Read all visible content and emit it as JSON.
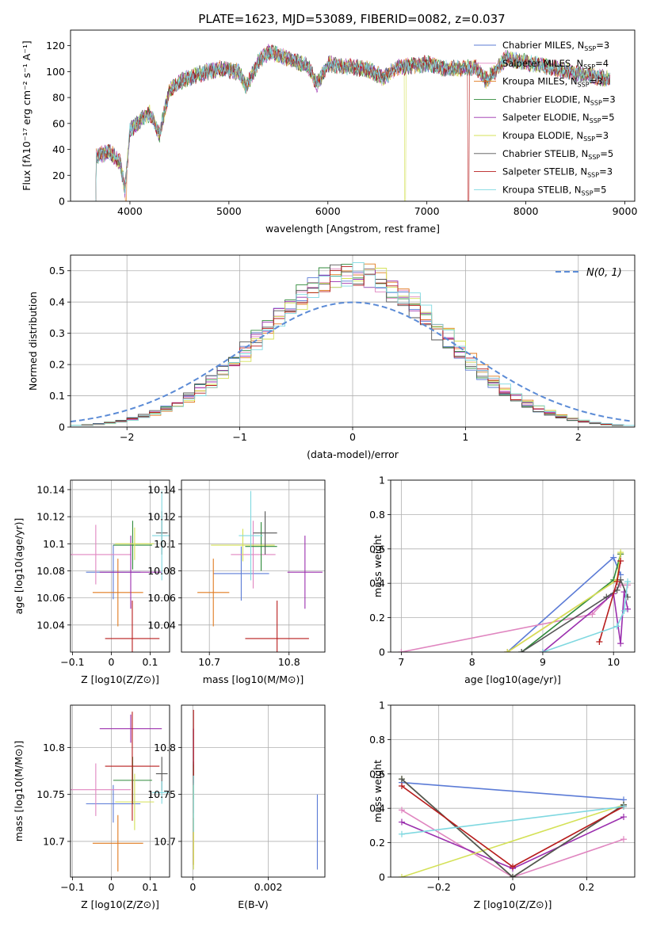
{
  "figure": {
    "title": "PLATE=1623, MJD=53089, FIBERID=0082, z=0.037",
    "series_colors": [
      "#5b7bd6",
      "#e086c0",
      "#e07a1f",
      "#2f8a3a",
      "#9b2fae",
      "#d4e157",
      "#555555",
      "#b71c1c",
      "#7fd8e0"
    ],
    "series_names": [
      [
        "Chabrier MILES, N",
        "SSP",
        "=3"
      ],
      [
        "Salpeter MILES, N",
        "SSP",
        "=4"
      ],
      [
        "Kroupa MILES, N",
        "SSP",
        "=3"
      ],
      [
        "Chabrier ELODIE, N",
        "SSP",
        "=3"
      ],
      [
        "Salpeter ELODIE, N",
        "SSP",
        "=5"
      ],
      [
        "Kroupa ELODIE, N",
        "SSP",
        "=3"
      ],
      [
        "Chabrier STELIB, N",
        "SSP",
        "=5"
      ],
      [
        "Salpeter STELIB, N",
        "SSP",
        "=3"
      ],
      [
        "Kroupa STELIB, N",
        "SSP",
        "=5"
      ]
    ]
  },
  "chart_data": [
    {
      "id": "spectrum",
      "type": "line",
      "title": "PLATE=1623, MJD=53089, FIBERID=0082, z=0.037",
      "xlabel": "wavelength [Angstrom, rest frame]",
      "ylabel": "Flux [fλ10⁻¹⁷ erg cm⁻² s⁻¹ A⁻¹]",
      "xlim": [
        3400,
        9100
      ],
      "ylim": [
        0,
        132
      ],
      "xticks": [
        4000,
        5000,
        6000,
        7000,
        8000,
        9000
      ],
      "yticks": [
        0,
        20,
        40,
        60,
        80,
        100,
        120
      ],
      "grid": false,
      "legend": "top-right",
      "spectrum_profile": [
        [
          3650,
          35
        ],
        [
          3800,
          38
        ],
        [
          3900,
          30
        ],
        [
          3950,
          8
        ],
        [
          4000,
          55
        ],
        [
          4100,
          62
        ],
        [
          4200,
          68
        ],
        [
          4300,
          52
        ],
        [
          4400,
          85
        ],
        [
          4500,
          92
        ],
        [
          4700,
          98
        ],
        [
          4900,
          102
        ],
        [
          5100,
          100
        ],
        [
          5175,
          88
        ],
        [
          5300,
          108
        ],
        [
          5400,
          115
        ],
        [
          5600,
          110
        ],
        [
          5800,
          104
        ],
        [
          5890,
          90
        ],
        [
          6000,
          106
        ],
        [
          6200,
          104
        ],
        [
          6400,
          102
        ],
        [
          6563,
          95
        ],
        [
          6700,
          103
        ],
        [
          7000,
          106
        ],
        [
          7200,
          102
        ],
        [
          7500,
          103
        ],
        [
          7600,
          93
        ],
        [
          7800,
          110
        ],
        [
          8200,
          104
        ],
        [
          8500,
          99
        ],
        [
          8850,
          94
        ]
      ],
      "dropouts": [
        {
          "series": 2,
          "x": 3960
        },
        {
          "series": 5,
          "x": 6780
        },
        {
          "series": 7,
          "x": 7420
        }
      ]
    },
    {
      "id": "residuals",
      "type": "histogram",
      "xlabel": "(data-model)/error",
      "ylabel": "Normed distribution",
      "xlim": [
        -2.5,
        2.5
      ],
      "ylim": [
        0,
        0.55
      ],
      "xticks": [
        -2,
        -1,
        0,
        1,
        2
      ],
      "yticks": [
        0.0,
        0.1,
        0.2,
        0.3,
        0.4,
        0.5
      ],
      "grid": true,
      "legend": "top-right",
      "reference_label": "N(0, 1)",
      "reference_mu": 0,
      "reference_sigma": 1,
      "bin_width": 0.1
    },
    {
      "id": "age_vs_Z",
      "type": "errorbar",
      "xlabel": "Z [log10(Z/Z⊙)]",
      "ylabel": "age  [log10(age/yr)]",
      "xlim": [
        -0.105,
        0.15
      ],
      "ylim": [
        10.02,
        10.147
      ],
      "xticks": [
        -0.1,
        0.0,
        0.1
      ],
      "yticks": [
        10.04,
        10.06,
        10.08,
        10.1,
        10.12,
        10.14
      ],
      "grid": true,
      "points": [
        {
          "x": 0.005,
          "y": 10.079,
          "xerr": 0.07,
          "yerr": 0.02
        },
        {
          "x": -0.04,
          "y": 10.092,
          "xerr": 0.09,
          "yerr": 0.022
        },
        {
          "x": 0.017,
          "y": 10.064,
          "xerr": 0.065,
          "yerr": 0.025
        },
        {
          "x": 0.055,
          "y": 10.099,
          "xerr": 0.05,
          "yerr": 0.018
        },
        {
          "x": 0.05,
          "y": 10.079,
          "xerr": 0.08,
          "yerr": 0.027
        },
        {
          "x": 0.06,
          "y": 10.1,
          "xerr": 0.05,
          "yerr": 0.012
        },
        {
          "x": 0.13,
          "y": 10.108,
          "xerr": 0.015,
          "yerr": 0.016
        },
        {
          "x": 0.054,
          "y": 10.03,
          "xerr": 0.07,
          "yerr": 0.028
        },
        {
          "x": 0.13,
          "y": 10.106,
          "xerr": 0.025,
          "yerr": 0.033
        }
      ]
    },
    {
      "id": "age_vs_mass",
      "type": "errorbar",
      "xlabel": "mass [log10(M/M⊙)]",
      "ylabel": "",
      "xlim": [
        10.665,
        10.845
      ],
      "ylim": [
        10.02,
        10.147
      ],
      "xticks": [
        10.7,
        10.8
      ],
      "yticks": [
        10.04,
        10.06,
        10.08,
        10.1,
        10.12,
        10.14
      ],
      "grid": true,
      "points": [
        {
          "x": 10.74,
          "y": 10.078,
          "xerr": 0.035,
          "yerr": 0.02
        },
        {
          "x": 10.755,
          "y": 10.092,
          "xerr": 0.028,
          "yerr": 0.025
        },
        {
          "x": 10.705,
          "y": 10.064,
          "xerr": 0.02,
          "yerr": 0.025
        },
        {
          "x": 10.765,
          "y": 10.098,
          "xerr": 0.02,
          "yerr": 0.018
        },
        {
          "x": 10.82,
          "y": 10.079,
          "xerr": 0.022,
          "yerr": 0.027
        },
        {
          "x": 10.742,
          "y": 10.099,
          "xerr": 0.04,
          "yerr": 0.012
        },
        {
          "x": 10.77,
          "y": 10.108,
          "xerr": 0.015,
          "yerr": 0.016
        },
        {
          "x": 10.785,
          "y": 10.03,
          "xerr": 0.04,
          "yerr": 0.028
        },
        {
          "x": 10.752,
          "y": 10.106,
          "xerr": 0.015,
          "yerr": 0.033
        }
      ]
    },
    {
      "id": "weight_vs_age",
      "type": "line",
      "xlabel": "age  [log10(age/yr)]",
      "ylabel": "mass weight",
      "xlim": [
        6.85,
        10.3
      ],
      "ylim": [
        0,
        1
      ],
      "xticks": [
        7,
        8,
        9,
        10
      ],
      "yticks": [
        0.0,
        0.2,
        0.4,
        0.6,
        0.8,
        1.0
      ],
      "grid": true,
      "series": [
        {
          "name": "Chabrier MILES",
          "x": [
            8.5,
            10.0,
            10.1
          ],
          "y": [
            0.0,
            0.55,
            0.45
          ]
        },
        {
          "name": "Salpeter MILES",
          "x": [
            7.0,
            9.7,
            10.1,
            10.2
          ],
          "y": [
            0.0,
            0.22,
            0.39,
            0.39
          ]
        },
        {
          "name": "Kroupa MILES",
          "x": [
            8.5,
            10.05,
            10.1
          ],
          "y": [
            0.0,
            0.42,
            0.57
          ]
        },
        {
          "name": "Chabrier ELODIE",
          "x": [
            8.7,
            10.0,
            10.1
          ],
          "y": [
            0.0,
            0.42,
            0.57
          ]
        },
        {
          "name": "Salpeter ELODIE",
          "x": [
            9.0,
            10.0,
            10.1,
            10.15,
            10.2
          ],
          "y": [
            0.0,
            0.34,
            0.05,
            0.35,
            0.25
          ]
        },
        {
          "name": "Kroupa ELODIE",
          "x": [
            8.5,
            10.05,
            10.1
          ],
          "y": [
            0.0,
            0.42,
            0.58
          ]
        },
        {
          "name": "Chabrier STELIB",
          "x": [
            8.7,
            9.9,
            10.05,
            10.1,
            10.2
          ],
          "y": [
            0.0,
            0.32,
            0.36,
            0.42,
            0.32
          ]
        },
        {
          "name": "Salpeter STELIB",
          "x": [
            9.8,
            10.05,
            10.1
          ],
          "y": [
            0.06,
            0.41,
            0.53
          ]
        },
        {
          "name": "Kroupa STELIB",
          "x": [
            9.0,
            10.05,
            10.15,
            10.2
          ],
          "y": [
            0.0,
            0.15,
            0.24,
            0.41
          ]
        }
      ]
    },
    {
      "id": "weight_vs_Z",
      "type": "line",
      "xlabel": "Z [log10(Z/Z⊙)]",
      "ylabel": "mass weight",
      "xlim": [
        -0.33,
        0.33
      ],
      "ylim": [
        0,
        1
      ],
      "xticks": [
        -0.2,
        0.0,
        0.2
      ],
      "yticks": [
        0.0,
        0.2,
        0.4,
        0.6,
        0.8,
        1.0
      ],
      "grid": true,
      "series": [
        {
          "name": "Chabrier MILES",
          "x": [
            -0.3,
            0.3
          ],
          "y": [
            0.55,
            0.45
          ]
        },
        {
          "name": "Salpeter MILES",
          "x": [
            -0.3,
            0.0,
            0.3
          ],
          "y": [
            0.39,
            0.0,
            0.22
          ]
        },
        {
          "name": "Kroupa MILES",
          "x": [
            -0.3,
            0.0,
            0.3
          ],
          "y": [
            0.57,
            0.0,
            0.42
          ]
        },
        {
          "name": "Chabrier ELODIE",
          "x": [
            -0.3,
            0.0,
            0.3
          ],
          "y": [
            0.57,
            0.0,
            0.42
          ]
        },
        {
          "name": "Salpeter ELODIE",
          "x": [
            -0.3,
            0.0,
            0.3
          ],
          "y": [
            0.32,
            0.05,
            0.35
          ]
        },
        {
          "name": "Kroupa ELODIE",
          "x": [
            -0.3,
            0.3
          ],
          "y": [
            0.0,
            0.42
          ]
        },
        {
          "name": "Chabrier STELIB",
          "x": [
            -0.3,
            0.0,
            0.3
          ],
          "y": [
            0.57,
            0.0,
            0.42
          ]
        },
        {
          "name": "Salpeter STELIB",
          "x": [
            -0.3,
            0.0,
            0.3
          ],
          "y": [
            0.53,
            0.06,
            0.41
          ]
        },
        {
          "name": "Kroupa STELIB",
          "x": [
            -0.3,
            0.3
          ],
          "y": [
            0.25,
            0.41
          ]
        }
      ]
    },
    {
      "id": "mass_vs_Z",
      "type": "errorbar",
      "xlabel": "Z [log10(Z/Z⊙)]",
      "ylabel": "mass [log10(M/M⊙)]",
      "xlim": [
        -0.105,
        0.15
      ],
      "ylim": [
        10.662,
        10.845
      ],
      "xticks": [
        -0.1,
        0.0,
        0.1
      ],
      "yticks": [
        10.7,
        10.75,
        10.8
      ],
      "grid": true,
      "points": [
        {
          "x": 0.005,
          "y": 10.74,
          "xerr": 0.07,
          "yerr": 0.02
        },
        {
          "x": -0.04,
          "y": 10.755,
          "xerr": 0.09,
          "yerr": 0.028
        },
        {
          "x": 0.017,
          "y": 10.698,
          "xerr": 0.065,
          "yerr": 0.03
        },
        {
          "x": 0.055,
          "y": 10.765,
          "xerr": 0.05,
          "yerr": 0.025
        },
        {
          "x": 0.05,
          "y": 10.82,
          "xerr": 0.08,
          "yerr": 0.015
        },
        {
          "x": 0.06,
          "y": 10.742,
          "xerr": 0.05,
          "yerr": 0.03
        },
        {
          "x": 0.13,
          "y": 10.772,
          "xerr": 0.015,
          "yerr": 0.018
        },
        {
          "x": 0.054,
          "y": 10.78,
          "xerr": 0.07,
          "yerr": 0.058
        },
        {
          "x": 0.13,
          "y": 10.752,
          "xerr": 0.025,
          "yerr": 0.012
        }
      ]
    },
    {
      "id": "mass_vs_EBV",
      "type": "errorbar",
      "xlabel": "E(B-V)",
      "ylabel": "",
      "xlim": [
        -0.0003,
        0.0035
      ],
      "ylim": [
        10.662,
        10.845
      ],
      "xticks": [
        0.0,
        0.002
      ],
      "yticks": [
        10.7,
        10.75,
        10.8
      ],
      "grid": true,
      "points": [
        {
          "x": 0.0033,
          "y": 10.71,
          "xerr": 0.0,
          "yerr": 0.04
        },
        {
          "x": 2e-05,
          "y": 10.755,
          "xerr": 0.0,
          "yerr": 0.025
        },
        {
          "x": 2e-05,
          "y": 10.7,
          "xerr": 0.0,
          "yerr": 0.025
        },
        {
          "x": 2e-05,
          "y": 10.765,
          "xerr": 0.0,
          "yerr": 0.02
        },
        {
          "x": 2e-05,
          "y": 10.8,
          "xerr": 0.0,
          "yerr": 0.02
        },
        {
          "x": 2e-05,
          "y": 10.72,
          "xerr": 0.0,
          "yerr": 0.05
        },
        {
          "x": 2e-05,
          "y": 10.772,
          "xerr": 0.0,
          "yerr": 0.01
        },
        {
          "x": 2e-05,
          "y": 10.8,
          "xerr": 0.0,
          "yerr": 0.04
        },
        {
          "x": 2e-05,
          "y": 10.74,
          "xerr": 0.0,
          "yerr": 0.03
        }
      ]
    }
  ]
}
